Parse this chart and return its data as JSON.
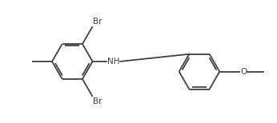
{
  "bg_color": "#ffffff",
  "line_color": "#404040",
  "text_color": "#404040",
  "lw": 1.3,
  "fs": 7.5,
  "figsize": [
    3.46,
    1.54
  ],
  "dpi": 100,
  "xlim": [
    -0.55,
    3.55
  ],
  "ylim": [
    -0.08,
    1.62
  ]
}
